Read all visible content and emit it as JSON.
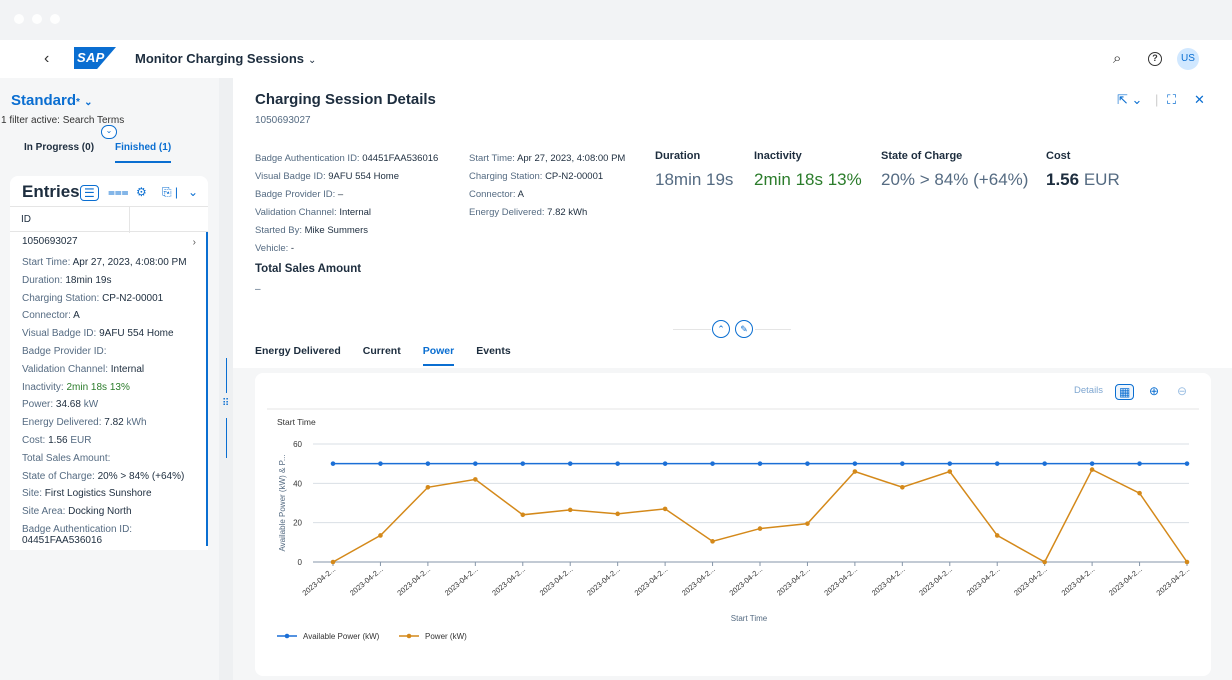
{
  "shell": {
    "back": "‹",
    "logo": "SAP",
    "title": "Monitor Charging Sessions",
    "title_chevron": "⌄",
    "search_icon": "⌕",
    "help_icon": "?",
    "user_initials": "US"
  },
  "left": {
    "variant": "Standard",
    "variant_mark": "*",
    "variant_chevron": "⌄",
    "filter_info": "1 filter active: Search Terms",
    "tabs": [
      "In Progress (0)",
      "Finished (1)"
    ],
    "entries_title": "Entries",
    "column_header": "ID",
    "row": {
      "id": "1050693027",
      "arrow": "›",
      "start_time_label": "Start Time:",
      "start_time": "Apr 27, 2023, 4:08:00 PM",
      "duration_label": "Duration:",
      "duration": "18min 19s",
      "station_label": "Charging Station:",
      "station": "CP-N2-00001",
      "connector_label": "Connector:",
      "connector": "A",
      "visual_badge_label": "Visual Badge ID:",
      "visual_badge": "9AFU 554 Home",
      "badge_provider_label": "Badge Provider ID:",
      "validation_label": "Validation Channel:",
      "validation": "Internal",
      "inactivity_label": "Inactivity:",
      "inactivity": "2min 18s 13%",
      "power_label": "Power:",
      "power": "34.68",
      "power_unit": "kW",
      "energy_label": "Energy Delivered:",
      "energy": "7.82",
      "energy_unit": "kWh",
      "cost_label": "Cost:",
      "cost": "1.56",
      "cost_unit": "EUR",
      "sales_label": "Total Sales Amount:",
      "soc_label": "State of Charge:",
      "soc": "20% > 84% (+64%)",
      "site_label": "Site:",
      "site": "First Logistics Sunshore",
      "site_area_label": "Site Area:",
      "site_area": "Docking North",
      "badge_auth_label": "Badge Authentication ID:",
      "badge_auth": "04451FAA536016"
    }
  },
  "detail": {
    "title": "Charging Session Details",
    "subtitle": "1050693027",
    "attrs1": [
      {
        "k": "Badge Authentication ID:",
        "v": "04451FAA536016"
      },
      {
        "k": "Visual Badge ID:",
        "v": "9AFU 554 Home"
      },
      {
        "k": "Badge Provider ID:",
        "v": "–"
      },
      {
        "k": "Validation Channel:",
        "v": "Internal"
      },
      {
        "k": "Started By:",
        "v": "Mike Summers"
      },
      {
        "k": "Vehicle:",
        "v": "-"
      }
    ],
    "attrs2": [
      {
        "k": "Start Time:",
        "v": "Apr 27, 2023, 4:08:00 PM"
      },
      {
        "k": "Charging Station:",
        "v": "CP-N2-00001"
      },
      {
        "k": "Connector:",
        "v": "A"
      },
      {
        "k": "Energy Delivered:",
        "v": "7.82 kWh"
      }
    ],
    "kpis": {
      "duration_label": "Duration",
      "duration": "18min 19s",
      "inactivity_label": "Inactivity",
      "inactivity": "2min 18s 13%",
      "soc_label": "State of Charge",
      "soc": "20% > 84% (+64%)",
      "cost_label": "Cost",
      "cost_value": "1.56",
      "cost_unit": "EUR"
    },
    "total_sales_label": "Total Sales Amount",
    "total_sales_value": "–",
    "tabs": [
      "Energy Delivered",
      "Current",
      "Power",
      "Events"
    ],
    "active_tab": "Power"
  },
  "chart_toolbar": {
    "details": "Details"
  },
  "chart_data": {
    "type": "line",
    "title": "Start Time",
    "xlabel": "Start Time",
    "ylabel": "Available Power (kW) & P...",
    "ylim": [
      0,
      60
    ],
    "yticks": [
      0,
      20,
      40,
      60
    ],
    "categories": [
      "2023-04-2...",
      "2023-04-2...",
      "2023-04-2...",
      "2023-04-2...",
      "2023-04-2...",
      "2023-04-2...",
      "2023-04-2...",
      "2023-04-2...",
      "2023-04-2...",
      "2023-04-2...",
      "2023-04-2...",
      "2023-04-2...",
      "2023-04-2...",
      "2023-04-2...",
      "2023-04-2...",
      "2023-04-2...",
      "2023-04-2...",
      "2023-04-2...",
      "2023-04-2..."
    ],
    "series": [
      {
        "name": "Available Power (kW)",
        "color": "#1b6fd6",
        "values": [
          50,
          50,
          50,
          50,
          50,
          50,
          50,
          50,
          50,
          50,
          50,
          50,
          50,
          50,
          50,
          50,
          50,
          50,
          50
        ]
      },
      {
        "name": "Power (kW)",
        "color": "#d4891a",
        "values": [
          0,
          13.5,
          38,
          42,
          24,
          26.5,
          24.5,
          27,
          10.5,
          17,
          19.5,
          46,
          38,
          46,
          13.5,
          0,
          47,
          35,
          0
        ]
      }
    ],
    "grid": true,
    "legend": "bottom-left"
  }
}
